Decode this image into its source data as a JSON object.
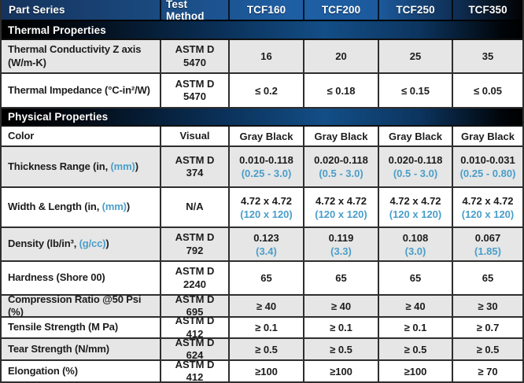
{
  "table": {
    "columns": [
      {
        "label": "Part Series"
      },
      {
        "label": "Test Method"
      },
      {
        "label": "TCF160"
      },
      {
        "label": "TCF200"
      },
      {
        "label": "TCF250"
      },
      {
        "label": "TCF350"
      }
    ],
    "sections": [
      {
        "title": "Thermal Properties",
        "rows": [
          {
            "label": {
              "prefix": "Thermal Conductivity Z axis (W/m-K)"
            },
            "method": "ASTM D 5470",
            "values": [
              {
                "main": "16"
              },
              {
                "main": "20"
              },
              {
                "main": "25"
              },
              {
                "main": "35"
              }
            ]
          },
          {
            "label": {
              "prefix": "Thermal Impedance (°C-in²/W)"
            },
            "method": "ASTM D 5470",
            "values": [
              {
                "main": "≤ 0.2"
              },
              {
                "main": "≤ 0.18"
              },
              {
                "main": "≤ 0.15"
              },
              {
                "main": "≤ 0.05"
              }
            ]
          }
        ]
      },
      {
        "title": "Physical Properties",
        "rows": [
          {
            "label": {
              "prefix": "Color"
            },
            "method": "Visual",
            "values": [
              {
                "main": "Gray Black"
              },
              {
                "main": "Gray Black"
              },
              {
                "main": "Gray Black"
              },
              {
                "main": "Gray Black"
              }
            ]
          },
          {
            "label": {
              "prefix": "Thickness Range (in, ",
              "blue": "(mm)",
              "suffix": ")"
            },
            "method": "ASTM D 374",
            "values": [
              {
                "main": "0.010-0.118",
                "sub": "(0.25 - 3.0)"
              },
              {
                "main": "0.020-0.118",
                "sub": "(0.5 - 3.0)"
              },
              {
                "main": "0.020-0.118",
                "sub": "(0.5 - 3.0)"
              },
              {
                "main": "0.010-0.031",
                "sub": "(0.25 - 0.80)"
              }
            ]
          },
          {
            "label": {
              "prefix": "Width & Length (in, ",
              "blue": "(mm)",
              "suffix": ")"
            },
            "method": "N/A",
            "values": [
              {
                "main": "4.72 x 4.72",
                "sub": "(120 x 120)"
              },
              {
                "main": "4.72 x 4.72",
                "sub": "(120 x 120)"
              },
              {
                "main": "4.72 x 4.72",
                "sub": "(120 x 120)"
              },
              {
                "main": "4.72 x 4.72",
                "sub": "(120 x 120)"
              }
            ]
          },
          {
            "label": {
              "prefix": "Density (lb/in³, ",
              "blue": "(g/cc)",
              "suffix": ")"
            },
            "method": "ASTM D 792",
            "values": [
              {
                "main": "0.123",
                "sub": "(3.4)"
              },
              {
                "main": "0.119",
                "sub": "(3.3)"
              },
              {
                "main": "0.108",
                "sub": "(3.0)"
              },
              {
                "main": "0.067",
                "sub": "(1.85)"
              }
            ]
          },
          {
            "label": {
              "prefix": "Hardness (Shore 00)"
            },
            "method": "ASTM D 2240",
            "values": [
              {
                "main": "65"
              },
              {
                "main": "65"
              },
              {
                "main": "65"
              },
              {
                "main": "65"
              }
            ]
          },
          {
            "label": {
              "prefix": "Compression Ratio @50 Psi (%)"
            },
            "method": "ASTM D 695",
            "values": [
              {
                "main": "≥ 40"
              },
              {
                "main": "≥ 40"
              },
              {
                "main": "≥ 40"
              },
              {
                "main": "≥ 30"
              }
            ]
          },
          {
            "label": {
              "prefix": "Tensile Strength (M Pa)"
            },
            "method": "ASTM D 412",
            "values": [
              {
                "main": "≥ 0.1"
              },
              {
                "main": "≥ 0.1"
              },
              {
                "main": "≥ 0.1"
              },
              {
                "main": "≥ 0.7"
              }
            ]
          },
          {
            "label": {
              "prefix": "Tear Strength (N/mm)"
            },
            "method": "ASTM D 624",
            "values": [
              {
                "main": "≥ 0.5"
              },
              {
                "main": "≥ 0.5"
              },
              {
                "main": "≥ 0.5"
              },
              {
                "main": "≥ 0.5"
              }
            ]
          },
          {
            "label": {
              "prefix": "Elongation (%)"
            },
            "method": "ASTM D 412",
            "values": [
              {
                "main": "≥100"
              },
              {
                "main": "≥100"
              },
              {
                "main": "≥100"
              },
              {
                "main": "≥ 70"
              }
            ]
          }
        ]
      }
    ]
  },
  "colors": {
    "accent_subvalue_blue": "#4a9ec9",
    "header_blue_bright": "#1e5fa4",
    "header_navy": "#15335c",
    "section_bar_blue": "#134e86",
    "shaded_row": "#e6e6e6",
    "grid_border": "#2e2e2e"
  }
}
